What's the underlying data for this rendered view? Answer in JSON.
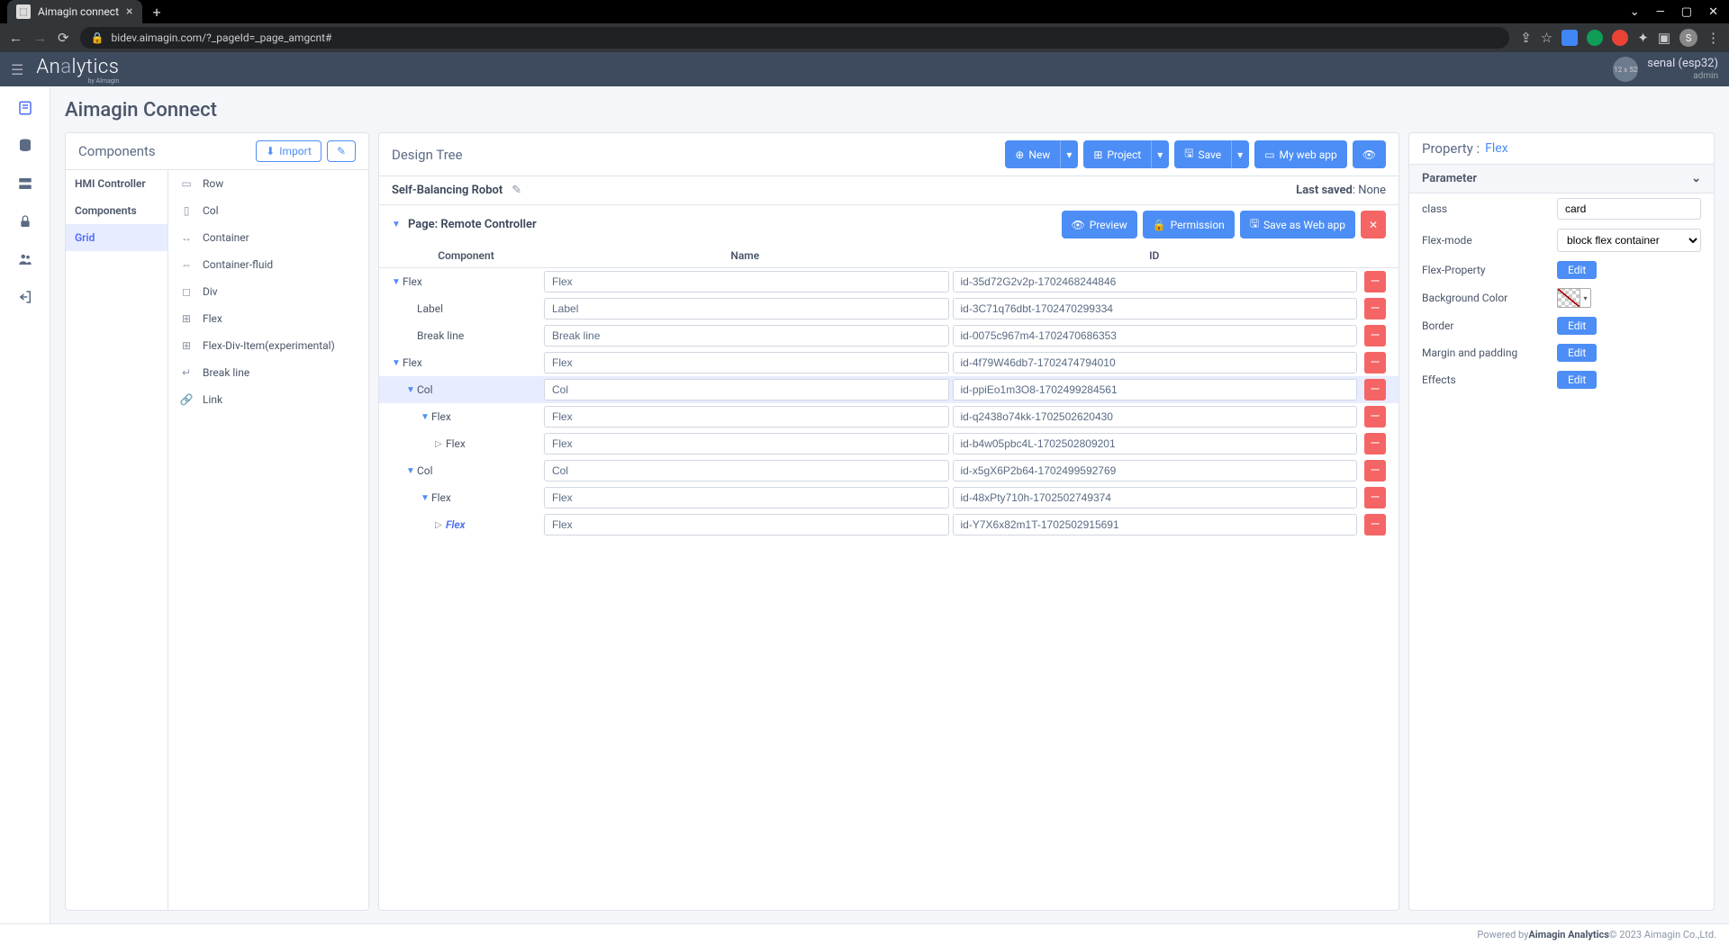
{
  "browser": {
    "tab_title": "Aimagin connect",
    "url": "bidev.aimagin.com/?_pageId=_page_amgcnt#",
    "avatar_letter": "S"
  },
  "header": {
    "logo": "Analytics",
    "logo_sub": "by AImagin",
    "user_avatar_text": "12 x 52",
    "user_name": "senal (esp32)",
    "user_role": "admin"
  },
  "page_title": "Aimagin Connect",
  "components_panel": {
    "title": "Components",
    "import_btn": "Import",
    "categories": [
      {
        "label": "HMI Controller",
        "active": false
      },
      {
        "label": "Components",
        "active": false,
        "subhead": true
      },
      {
        "label": "Grid",
        "active": true
      }
    ],
    "items": [
      {
        "icon": "row",
        "label": "Row"
      },
      {
        "icon": "col",
        "label": "Col"
      },
      {
        "icon": "container",
        "label": "Container"
      },
      {
        "icon": "container-fluid",
        "label": "Container-fluid"
      },
      {
        "icon": "div",
        "label": "Div"
      },
      {
        "icon": "flex",
        "label": "Flex"
      },
      {
        "icon": "flex-div",
        "label": "Flex-Div-Item(experimental)"
      },
      {
        "icon": "break",
        "label": "Break line"
      },
      {
        "icon": "link",
        "label": "Link"
      }
    ]
  },
  "design_panel": {
    "title": "Design Tree",
    "project_name": "Self-Balancing Robot",
    "last_saved_label": "Last saved",
    "last_saved_value": "None",
    "page_label": "Page: Remote Controller",
    "buttons": {
      "new": "New",
      "project": "Project",
      "save": "Save",
      "my_web_app": "My web app",
      "preview": "Preview",
      "permission": "Permission",
      "save_as_web": "Save as Web app"
    },
    "columns": {
      "component": "Component",
      "name": "Name",
      "id": "ID"
    },
    "tree": [
      {
        "indent": 0,
        "expanded": true,
        "label": "Flex",
        "name": "Flex",
        "id": "id-35d72G2v2p-1702468244846"
      },
      {
        "indent": 1,
        "expanded": null,
        "label": "Label",
        "name": "Label",
        "id": "id-3C71q76dbt-1702470299334"
      },
      {
        "indent": 1,
        "expanded": null,
        "label": "Break line",
        "name": "Break line",
        "id": "id-0075c967m4-1702470686353"
      },
      {
        "indent": 0,
        "expanded": true,
        "label": "Flex",
        "name": "Flex",
        "id": "id-4f79W46db7-1702474794010"
      },
      {
        "indent": 1,
        "expanded": true,
        "label": "Col",
        "name": "Col",
        "id": "id-ppiEo1m3O8-1702499284561",
        "selected": true
      },
      {
        "indent": 2,
        "expanded": true,
        "label": "Flex",
        "name": "Flex",
        "id": "id-q2438o74kk-1702502620430"
      },
      {
        "indent": 3,
        "expanded": false,
        "label": "Flex",
        "name": "Flex",
        "id": "id-b4w05pbc4L-1702502809201"
      },
      {
        "indent": 1,
        "expanded": true,
        "label": "Col",
        "name": "Col",
        "id": "id-x5gX6P2b64-1702499592769"
      },
      {
        "indent": 2,
        "expanded": true,
        "label": "Flex",
        "name": "Flex",
        "id": "id-48xPty710h-1702502749374"
      },
      {
        "indent": 3,
        "expanded": false,
        "label": "Flex",
        "name": "Flex",
        "id": "id-Y7X6x82m1T-1702502915691",
        "selected_italic": true
      }
    ]
  },
  "property_panel": {
    "title": "Property :",
    "target": "Flex",
    "section": "Parameter",
    "rows": {
      "class": {
        "label": "class",
        "value": "card"
      },
      "flex_mode": {
        "label": "Flex-mode",
        "value": "block flex container"
      },
      "flex_property": {
        "label": "Flex-Property",
        "btn": "Edit"
      },
      "bg_color": {
        "label": "Background Color"
      },
      "border": {
        "label": "Border",
        "btn": "Edit"
      },
      "margin_padding": {
        "label": "Margin and padding",
        "btn": "Edit"
      },
      "effects": {
        "label": "Effects",
        "btn": "Edit"
      }
    }
  },
  "footer": {
    "prefix": "Powered by ",
    "brand": "Aimagin Analytics",
    "suffix": " © 2023 Aimagin Co.,Ltd."
  }
}
